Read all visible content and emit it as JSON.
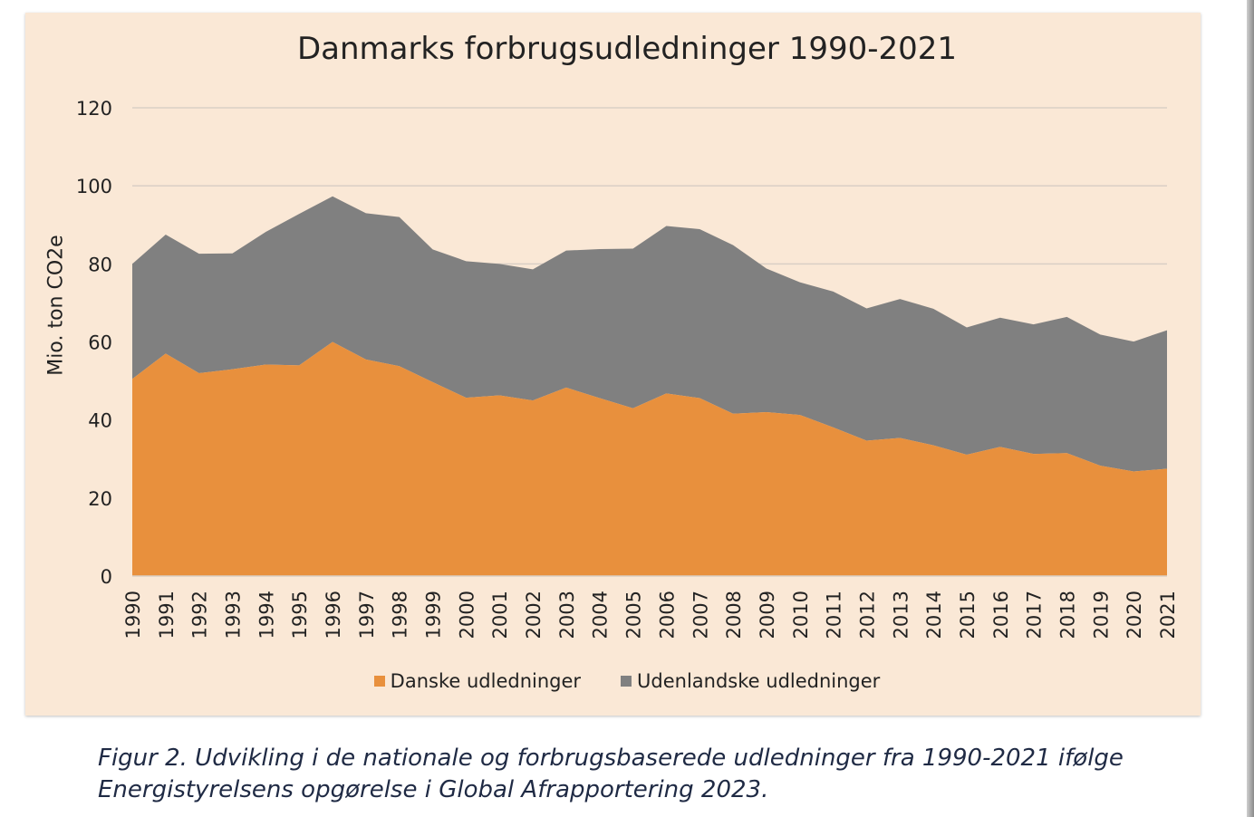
{
  "chart_data": {
    "type": "area",
    "stacked": true,
    "title": "Danmarks forbrugsudledninger 1990-2021",
    "ylabel": "Mio. ton CO2e",
    "xlabel": "",
    "ylim": [
      0,
      120
    ],
    "yticks": [
      0,
      20,
      40,
      60,
      80,
      100,
      120
    ],
    "grid": true,
    "legend_position": "bottom",
    "categories": [
      "1990",
      "1991",
      "1992",
      "1993",
      "1994",
      "1995",
      "1996",
      "1997",
      "1998",
      "1999",
      "2000",
      "2001",
      "2002",
      "2003",
      "2004",
      "2005",
      "2006",
      "2007",
      "2008",
      "2009",
      "2010",
      "2011",
      "2012",
      "2013",
      "2014",
      "2015",
      "2016",
      "2017",
      "2018",
      "2019",
      "2020",
      "2021"
    ],
    "series": [
      {
        "name": "Danske udledninger",
        "color": "#e8903d",
        "values": [
          50.5,
          57,
          52,
          53,
          54.2,
          54,
          60,
          55.5,
          53.8,
          49.7,
          45.7,
          46.3,
          45,
          48.3,
          45.6,
          43,
          46.8,
          45.6,
          41.6,
          42,
          41.3,
          38.1,
          34.7,
          35.4,
          33.5,
          31.1,
          33.1,
          31.3,
          31.5,
          28.3,
          26.8,
          27.5
        ]
      },
      {
        "name": "Udenlandske udledninger",
        "color": "#808080",
        "values": [
          29.5,
          30.5,
          30.6,
          29.7,
          34,
          38.8,
          37.3,
          37.5,
          38.2,
          34,
          35,
          33.7,
          33.6,
          35.1,
          38.2,
          40.9,
          42.9,
          43.3,
          43.2,
          36.8,
          34,
          34.8,
          33.9,
          35.6,
          35,
          32.6,
          33.1,
          33.2,
          34.9,
          33.6,
          33.3,
          35.5
        ]
      }
    ]
  },
  "caption": {
    "line1": "Figur 2. Udvikling i de nationale og forbrugsbaserede udledninger fra 1990-2021 ifølge",
    "line2": "Energistyrelsens opgørelse i Global Afrapportering 2023."
  }
}
